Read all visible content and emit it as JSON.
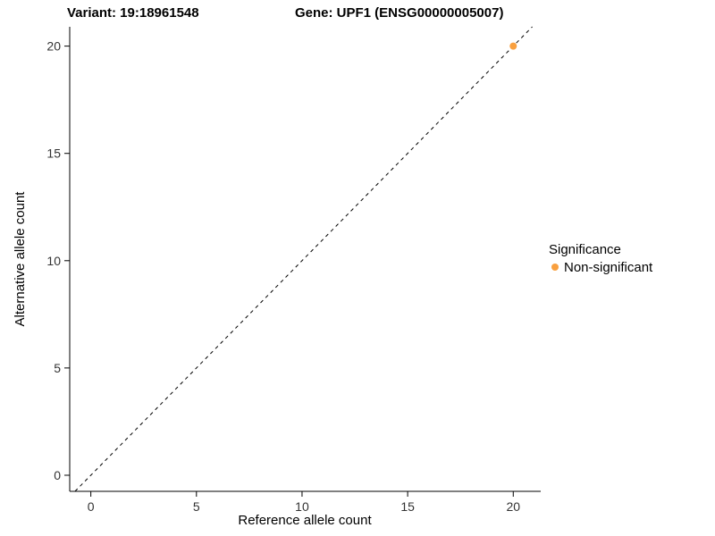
{
  "chart_data": {
    "type": "scatter",
    "title_left": "Variant: 19:18961548",
    "title_right": "Gene: UPF1 (ENSG00000005007)",
    "xlabel": "Reference allele count",
    "ylabel": "Alternative allele count",
    "xlim": [
      -1.0,
      21.3
    ],
    "ylim": [
      -0.75,
      20.9
    ],
    "xticks": [
      0,
      5,
      10,
      15,
      20
    ],
    "yticks": [
      0,
      5,
      10,
      15,
      20
    ],
    "grid": false,
    "background": "#FFFFFF",
    "axis_color": "#000000",
    "identity_line": {
      "style": "dashed",
      "color": "#000000",
      "equation": "y = x"
    },
    "series": [
      {
        "name": "Non-significant",
        "color": "#F9A03F",
        "points": [
          {
            "x": 20,
            "y": 20
          }
        ]
      }
    ],
    "legend": {
      "title": "Significance",
      "position": "right",
      "entries": [
        {
          "label": "Non-significant",
          "color": "#F9A03F"
        }
      ]
    }
  }
}
